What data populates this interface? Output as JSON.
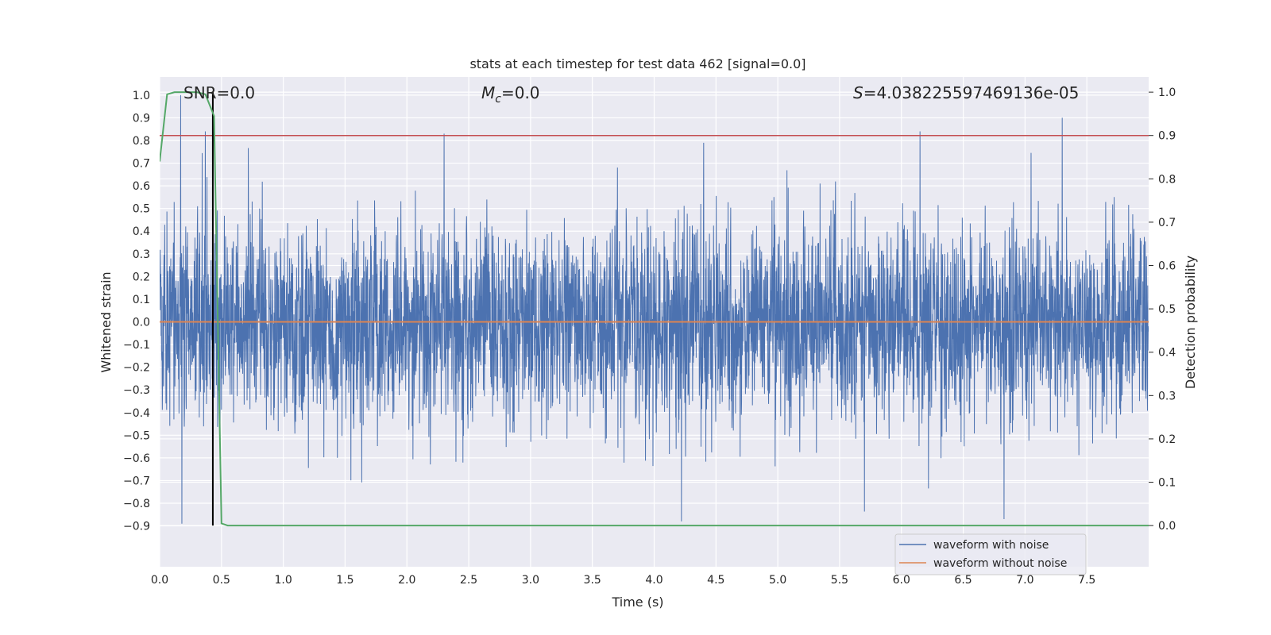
{
  "chart_data": {
    "type": "line",
    "title": "stats at each timestep for test data 462 [signal=0.0]",
    "xlabel": "Time (s)",
    "ylabel": "Whitened strain",
    "ylabel_right": "Detection probability",
    "xlim": [
      0.0,
      8.0
    ],
    "ylim_left": [
      -1.08,
      1.08
    ],
    "ylim_right": [
      -0.095,
      1.035
    ],
    "x_ticks": [
      "0.0",
      "0.5",
      "1.0",
      "1.5",
      "2.0",
      "2.5",
      "3.0",
      "3.5",
      "4.0",
      "4.5",
      "5.0",
      "5.5",
      "6.0",
      "6.5",
      "7.0",
      "7.5"
    ],
    "y_ticks_left": [
      "-0.9",
      "-0.8",
      "-0.7",
      "-0.6",
      "-0.5",
      "-0.4",
      "-0.3",
      "-0.2",
      "-0.1",
      "0.0",
      "0.1",
      "0.2",
      "0.3",
      "0.4",
      "0.5",
      "0.6",
      "0.7",
      "0.8",
      "0.9",
      "1.0"
    ],
    "y_ticks_right": [
      "0.0",
      "0.1",
      "0.2",
      "0.3",
      "0.4",
      "0.5",
      "0.6",
      "0.7",
      "0.8",
      "0.9",
      "1.0"
    ],
    "annotations": {
      "snr": "SNR=0.0",
      "mc_symbol": "M",
      "mc_sub": "c",
      "mc_value": "=0.0",
      "s_symbol": "S",
      "s_value": "=4.038225597469136e-05"
    },
    "series": [
      {
        "name": "waveform with noise",
        "color": "#4c72b0",
        "axis": "left",
        "sample_rate": 512,
        "noise_std": 0.22,
        "notable_peaks": [
          {
            "x": 0.17,
            "y": 1.0
          },
          {
            "x": 0.37,
            "y": 0.84
          },
          {
            "x": 2.3,
            "y": 0.83
          },
          {
            "x": 4.4,
            "y": 0.79
          },
          {
            "x": 6.15,
            "y": 0.84
          },
          {
            "x": 7.3,
            "y": 0.9
          },
          {
            "x": 0.18,
            "y": -0.89
          },
          {
            "x": 4.22,
            "y": -0.88
          },
          {
            "x": 6.83,
            "y": -0.87
          }
        ]
      },
      {
        "name": "waveform without noise",
        "color": "#dd8452",
        "axis": "left",
        "x": [
          0.0,
          8.0
        ],
        "y": [
          0.0,
          0.0
        ]
      },
      {
        "name": "",
        "color": "#55a868",
        "axis": "right",
        "x": [
          0.0,
          0.06,
          0.12,
          0.2,
          0.3,
          0.37,
          0.44,
          0.5,
          0.55,
          1.0,
          8.0
        ],
        "y": [
          0.84,
          0.995,
          1.0,
          1.0,
          1.0,
          0.995,
          0.945,
          0.005,
          0.0,
          0.0,
          0.0
        ]
      }
    ],
    "threshold_line": {
      "axis": "right",
      "y": 0.9,
      "color": "#c44e52"
    },
    "vertical_marker": {
      "x": 0.43,
      "y0_right": 0.0,
      "y1_right": 1.0,
      "color": "#000000"
    },
    "legend": {
      "placement": "bottom-right",
      "items": [
        "waveform with noise",
        "waveform without noise"
      ]
    },
    "grid": true
  }
}
